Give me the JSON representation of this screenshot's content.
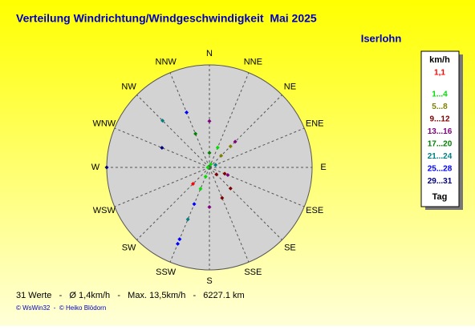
{
  "chart_data": {
    "type": "polar",
    "title": "Verteilung Windrichtung/Windgeschwindigkeit  Mai 2025",
    "location": "Iserlohn",
    "directions": [
      "N",
      "NNE",
      "NE",
      "ENE",
      "E",
      "ESE",
      "SE",
      "SSE",
      "S",
      "SSW",
      "SW",
      "WSW",
      "W",
      "WNW",
      "NW",
      "NNW"
    ],
    "rlim": [
      0,
      31
    ],
    "points": [
      {
        "angle": 0,
        "r": 14,
        "color": "#800080"
      },
      {
        "angle": 22.5,
        "r": 6.5,
        "color": "#00e000"
      },
      {
        "angle": 0,
        "r": 4.4,
        "color": "#008000"
      },
      {
        "angle": 337.5,
        "r": 11,
        "color": "#008000"
      },
      {
        "angle": 315,
        "r": 20,
        "color": "#008080"
      },
      {
        "angle": 337.5,
        "r": 18,
        "color": "#0000ff"
      },
      {
        "angle": 292.5,
        "r": 15.5,
        "color": "#000080"
      },
      {
        "angle": 270,
        "r": 31,
        "color": "#000080"
      },
      {
        "angle": 45,
        "r": 11,
        "color": "#800080"
      },
      {
        "angle": 45,
        "r": 9,
        "color": "#808000"
      },
      {
        "angle": 45,
        "r": 5,
        "color": "#808000"
      },
      {
        "angle": 67.5,
        "r": 2,
        "color": "#008080"
      },
      {
        "angle": 22.5,
        "r": 1,
        "color": "#00e000"
      },
      {
        "angle": 270,
        "r": 0.5,
        "color": "#00e000"
      },
      {
        "angle": 112.5,
        "r": 6,
        "color": "#800080"
      },
      {
        "angle": 112.5,
        "r": 5,
        "color": "#800000"
      },
      {
        "angle": 135,
        "r": 9,
        "color": "#800000"
      },
      {
        "angle": 157.5,
        "r": 10,
        "color": "#800000"
      },
      {
        "angle": 180,
        "r": 12,
        "color": "#800080"
      },
      {
        "angle": 135,
        "r": 3,
        "color": "#800000"
      },
      {
        "angle": 202.5,
        "r": 3,
        "color": "#00e000"
      },
      {
        "angle": 225,
        "r": 7,
        "color": "#ff0000"
      },
      {
        "angle": 202.5,
        "r": 7,
        "color": "#00e000"
      },
      {
        "angle": 202.5,
        "r": 12,
        "color": "#0000ff"
      },
      {
        "angle": 202.5,
        "r": 17,
        "color": "#008080"
      },
      {
        "angle": 202.5,
        "r": 23.5,
        "color": "#0000ff"
      },
      {
        "angle": 202.5,
        "r": 25,
        "color": "#0000ff"
      }
    ],
    "legend": {
      "title": "km/h",
      "footer": "Tag",
      "items": [
        {
          "label": "1,1",
          "color": "#ff0000"
        },
        {
          "label": "1...4",
          "color": "#00e000"
        },
        {
          "label": "5...8",
          "color": "#808000"
        },
        {
          "label": "9...12",
          "color": "#800000"
        },
        {
          "label": "13...16",
          "color": "#800080"
        },
        {
          "label": "17...20",
          "color": "#008000"
        },
        {
          "label": "21...24",
          "color": "#008080"
        },
        {
          "label": "25...28",
          "color": "#0000ff"
        },
        {
          "label": "29...31",
          "color": "#000080"
        }
      ]
    },
    "summary": "31 Werte   -   Ø 1,4km/h   -   Max. 13,5km/h   -   6227.1 km",
    "credit": "© WsWin32  -  © Heiko Blödorn"
  }
}
